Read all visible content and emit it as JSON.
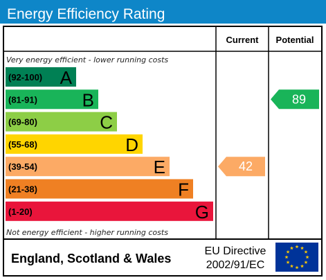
{
  "chart_data": {
    "type": "bar",
    "title": "Energy Efficiency Rating",
    "columns": {
      "current": "Current",
      "potential": "Potential"
    },
    "top_note": "Very energy efficient - lower running costs",
    "bottom_note": "Not energy efficient - higher running costs",
    "bands": [
      {
        "range": "(92-100)",
        "letter": "A",
        "color": "#008054"
      },
      {
        "range": "(81-91)",
        "letter": "B",
        "color": "#19b459"
      },
      {
        "range": "(69-80)",
        "letter": "C",
        "color": "#8dce46"
      },
      {
        "range": "(55-68)",
        "letter": "D",
        "color": "#ffd500"
      },
      {
        "range": "(39-54)",
        "letter": "E",
        "color": "#fcaa65"
      },
      {
        "range": "(21-38)",
        "letter": "F",
        "color": "#ef8023"
      },
      {
        "range": "(1-20)",
        "letter": "G",
        "color": "#e9153b"
      }
    ],
    "current": {
      "value": 42,
      "band": "E",
      "color": "#fcaa65"
    },
    "potential": {
      "value": 89,
      "band": "B",
      "color": "#19b459"
    },
    "footer": {
      "region": "England, Scotland & Wales",
      "directive_line1": "EU Directive",
      "directive_line2": "2002/91/EC"
    },
    "colors": {
      "title_bar": "#0e86c8",
      "eu_flag": "#003399",
      "eu_stars": "#ffcc00"
    }
  }
}
